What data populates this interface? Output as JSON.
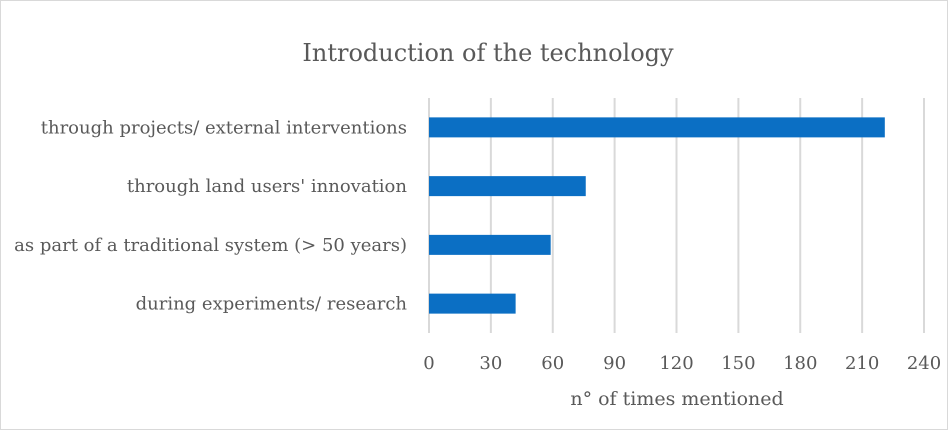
{
  "chart_data": {
    "type": "bar",
    "orientation": "horizontal",
    "title": "Introduction of the technology",
    "xlabel": "n° of times mentioned",
    "ylabel": "",
    "categories": [
      "through projects/ external interventions",
      "through land users' innovation",
      "as part of a traditional system (> 50 years)",
      "during experiments/ research"
    ],
    "values": [
      221,
      76,
      59,
      42
    ],
    "xlim": [
      0,
      240
    ],
    "xticks": [
      0,
      30,
      60,
      90,
      120,
      150,
      180,
      210,
      240
    ],
    "grid": "vertical",
    "legend": "none",
    "colors": {
      "bar": "#0b6fc4",
      "grid": "#d9d9d9",
      "text": "#595959",
      "title": "#595959",
      "border": "#d9d9d9"
    }
  }
}
